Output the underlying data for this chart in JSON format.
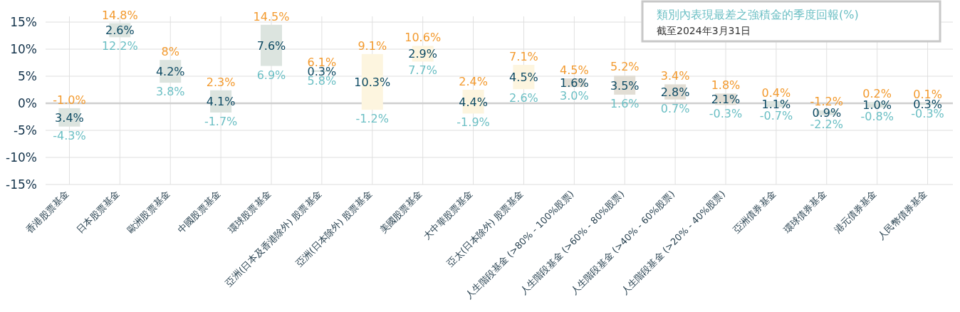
{
  "chart_data": {
    "type": "bar",
    "categories": [
      "香港股票基金",
      "日本股票基金",
      "歐洲股票基金",
      "中國股票基金",
      "環球股票基金",
      "亞洲(日本及香港除外) 股票基金",
      "亞洲(日本除外) 股票基金",
      "美國股票基金",
      "大中華股票基金",
      "亞太(日本除外) 股票基金",
      "人生階段基金 (>80% - 100%股票)",
      "人生階段基金 (>60% - 80%股票)",
      "人生階段基金 (>40% - 60%股票)",
      "人生階段基金 (>20% - 40%股票)",
      "亞洲債券基金",
      "環球債券基金",
      "港元債券基金",
      "人民幣債券基金"
    ],
    "base": [
      -4.3,
      12.2,
      3.8,
      -1.7,
      6.9,
      5.8,
      -1.2,
      7.7,
      -1.9,
      2.6,
      3.0,
      1.6,
      0.7,
      -0.3,
      -0.7,
      -2.2,
      -0.8,
      -0.3
    ],
    "values": [
      3.4,
      2.6,
      4.2,
      4.1,
      7.6,
      0.3,
      10.3,
      2.9,
      4.4,
      4.5,
      1.6,
      3.5,
      2.8,
      2.1,
      1.1,
      0.9,
      1.0,
      0.3
    ],
    "value_labels": [
      "3.4%",
      "2.6%",
      "4.2%",
      "4.1%",
      "7.6%",
      "0.3%",
      "10.3%",
      "2.9%",
      "4.4%",
      "4.5%",
      "1.6%",
      "3.5%",
      "2.8%",
      "2.1%",
      "1.1%",
      "0.9%",
      "1.0%",
      "0.3%"
    ],
    "colors": [
      "#dce4df",
      "#dce4df",
      "#dce4df",
      "#dce4df",
      "#dce4df",
      "#dce4df",
      "#fdf5df",
      "#fdf5df",
      "#fdf5df",
      "#fdf5df",
      "#e2ded5",
      "#e2ded5",
      "#e2ded5",
      "#e2ded5",
      "#dce4df",
      "#dce4df",
      "#dce4df",
      "#dce4df"
    ],
    "ylim": [
      -15,
      15
    ],
    "yticks": [
      {
        "value": -15,
        "label": "-15%"
      },
      {
        "value": -10,
        "label": "-10%"
      },
      {
        "value": -5,
        "label": "-5%"
      },
      {
        "value": 0,
        "label": "0%"
      },
      {
        "value": 5,
        "label": "5%"
      },
      {
        "value": 10,
        "label": "10%"
      },
      {
        "value": 15,
        "label": "15%"
      }
    ],
    "grid": true,
    "annotations": [
      "類別內表現最差之強積金的季度回報(%)",
      "截至2024年3月31日",
      {
        "text": "-1.0%",
        "x": "香港股票基金",
        "y": -1.0
      },
      {
        "text": "-4.3%",
        "x": "香港股票基金",
        "y": -4.3
      },
      {
        "text": "14.8%",
        "x": "日本股票基金",
        "y": 14.8
      },
      {
        "text": "12.2%",
        "x": "日本股票基金",
        "y": 12.2
      },
      {
        "text": "8%",
        "x": "歐洲股票基金",
        "y": 8
      },
      {
        "text": "3.8%",
        "x": "歐洲股票基金",
        "y": 3.8
      },
      {
        "text": "2.3%",
        "x": "中國股票基金",
        "y": 2.3
      },
      {
        "text": "-1.7%",
        "x": "中國股票基金",
        "y": -1.7
      },
      {
        "text": "14.5%",
        "x": "環球股票基金",
        "y": 14.5
      },
      {
        "text": "6.9%",
        "x": "環球股票基金",
        "y": 6.9
      },
      {
        "text": "6.1%",
        "x": "亞洲(日本及香港除外) 股票基金",
        "y": 6.1
      },
      {
        "text": "5.8%",
        "x": "亞洲(日本及香港除外) 股票基金",
        "y": 5.8
      },
      {
        "text": "9.1%",
        "x": "亞洲(日本除外) 股票基金",
        "y": 9.1
      },
      {
        "text": "-1.2%",
        "x": "亞洲(日本除外) 股票基金",
        "y": -1.2
      },
      {
        "text": "10.6%",
        "x": "美國股票基金",
        "y": 10.6
      },
      {
        "text": "7.7%",
        "x": "美國股票基金",
        "y": 7.7
      },
      {
        "text": "2.4%",
        "x": "大中華股票基金",
        "y": 2.4
      },
      {
        "text": "-1.9%",
        "x": "大中華股票基金",
        "y": -1.9
      },
      {
        "text": "7.1%",
        "x": "亞太(日本除外) 股票基金",
        "y": 7.1
      },
      {
        "text": "2.6%",
        "x": "亞太(日本除外) 股票基金",
        "y": 2.6
      },
      {
        "text": "4.5%",
        "x": "人生階段基金 (>80% - 100%股票)",
        "y": 4.5
      },
      {
        "text": "3.0%",
        "x": "人生階段基金 (>80% - 100%股票)",
        "y": 3.0
      },
      {
        "text": "5.2%",
        "x": "人生階段基金 (>60% - 80%股票)",
        "y": 5.2
      },
      {
        "text": "1.6%",
        "x": "人生階段基金 (>60% - 80%股票)",
        "y": 1.6
      },
      {
        "text": "3.4%",
        "x": "人生階段基金 (>40% - 60%股票)",
        "y": 3.4
      },
      {
        "text": "0.7%",
        "x": "人生階段基金 (>40% - 60%股票)",
        "y": 0.7
      },
      {
        "text": "1.8%",
        "x": "人生階段基金 (>20% - 40%股票)",
        "y": 1.8
      },
      {
        "text": "-0.3%",
        "x": "人生階段基金 (>20% - 40%股票)",
        "y": -0.3
      },
      {
        "text": "0.4%",
        "x": "亞洲債券基金",
        "y": 0.4
      },
      {
        "text": "-0.7%",
        "x": "亞洲債券基金",
        "y": -0.7
      },
      {
        "text": "-1.2%",
        "x": "環球債券基金",
        "y": -1.2
      },
      {
        "text": "-2.2%",
        "x": "環球債券基金",
        "y": -2.2
      },
      {
        "text": "0.2%",
        "x": "港元債券基金",
        "y": 0.2
      },
      {
        "text": "-0.8%",
        "x": "港元債券基金",
        "y": -0.8
      },
      {
        "text": "0.1%",
        "x": "人民幣債券基金",
        "y": 0.1
      },
      {
        "text": "-0.3%",
        "x": "人民幣債券基金",
        "y": -0.3
      }
    ]
  }
}
